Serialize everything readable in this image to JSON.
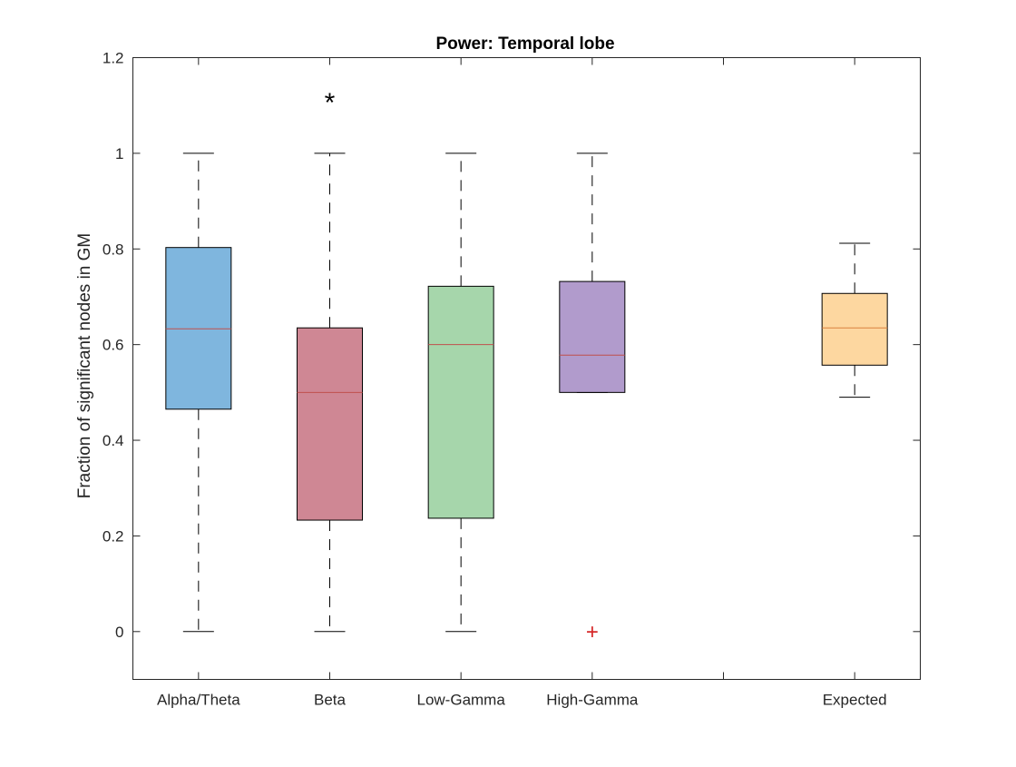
{
  "chart_data": {
    "type": "boxplot",
    "title": "Power: Temporal lobe",
    "xlabel": "",
    "ylabel": "Fraction of significant nodes in GM",
    "ylim": [
      -0.1,
      1.2
    ],
    "yticks": [
      "0",
      "0.2",
      "0.4",
      "0.6",
      "0.8",
      "1",
      "1.2"
    ],
    "ytick_values": [
      0,
      0.2,
      0.4,
      0.6,
      0.8,
      1.0,
      1.2
    ],
    "xlim": [
      0.5,
      6.5
    ],
    "grid": false,
    "categories": [
      "Alpha/Theta",
      "Beta",
      "Low-Gamma",
      "High-Gamma",
      "",
      "Expected"
    ],
    "boxes": [
      {
        "category": "Alpha/Theta",
        "x": 1,
        "whisker_low": 0.0,
        "q1": 0.465,
        "median": 0.633,
        "q3": 0.803,
        "whisker_high": 1.0,
        "outliers": [],
        "color": "#7fb6de",
        "median_color": "#c0504d"
      },
      {
        "category": "Beta",
        "x": 2,
        "whisker_low": 0.0,
        "q1": 0.233,
        "median": 0.5,
        "q3": 0.635,
        "whisker_high": 1.0,
        "outliers": [],
        "color": "#cf8794",
        "median_color": "#c0504d"
      },
      {
        "category": "Low-Gamma",
        "x": 3,
        "whisker_low": 0.0,
        "q1": 0.237,
        "median": 0.6,
        "q3": 0.722,
        "whisker_high": 1.0,
        "outliers": [],
        "color": "#a6d6ab",
        "median_color": "#c0504d"
      },
      {
        "category": "High-Gamma",
        "x": 4,
        "whisker_low": 0.5,
        "q1": 0.5,
        "median": 0.578,
        "q3": 0.732,
        "whisker_high": 1.0,
        "outliers": [
          0.0
        ],
        "color": "#b19bcc",
        "median_color": "#c0504d"
      },
      {
        "category": "Expected",
        "x": 6,
        "whisker_low": 0.49,
        "q1": 0.557,
        "median": 0.635,
        "q3": 0.707,
        "whisker_high": 0.812,
        "outliers": [],
        "color": "#fdd7a0",
        "median_color": "#d9813f"
      }
    ],
    "annotations": [
      {
        "text": "*",
        "x": 2,
        "y": 1.11
      }
    ],
    "outlier_marker": "+",
    "outlier_color": "#d62728"
  }
}
